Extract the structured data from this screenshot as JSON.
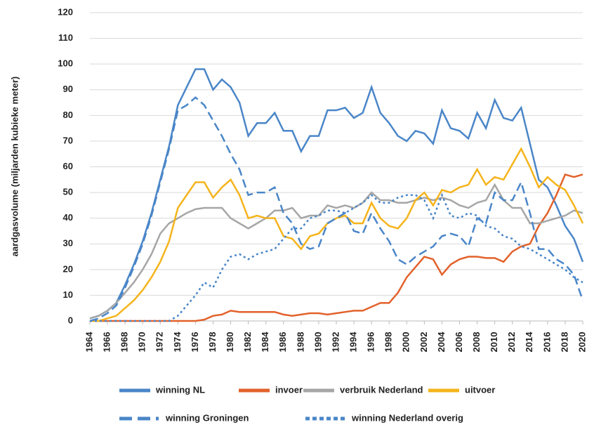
{
  "chart_data": {
    "type": "line",
    "y_label": "aardgasvolume (miljarden kubieke meter)",
    "x": [
      1964,
      1965,
      1966,
      1967,
      1968,
      1969,
      1970,
      1971,
      1972,
      1973,
      1974,
      1975,
      1976,
      1977,
      1978,
      1979,
      1980,
      1981,
      1982,
      1983,
      1984,
      1985,
      1986,
      1987,
      1988,
      1989,
      1990,
      1991,
      1992,
      1993,
      1994,
      1995,
      1996,
      1997,
      1998,
      1999,
      2000,
      2001,
      2002,
      2003,
      2004,
      2005,
      2006,
      2007,
      2008,
      2009,
      2010,
      2011,
      2012,
      2013,
      2014,
      2015,
      2016,
      2017,
      2018,
      2019,
      2020
    ],
    "xlim": [
      1964,
      2020
    ],
    "xticks": [
      1964,
      1966,
      1968,
      1970,
      1972,
      1974,
      1976,
      1978,
      1980,
      1982,
      1984,
      1986,
      1988,
      1990,
      1992,
      1994,
      1996,
      1998,
      2000,
      2002,
      2004,
      2006,
      2008,
      2010,
      2012,
      2014,
      2016,
      2018,
      2020
    ],
    "ylim": [
      0,
      120
    ],
    "yticks": [
      0,
      10,
      20,
      30,
      40,
      50,
      60,
      70,
      80,
      90,
      100,
      110,
      120
    ],
    "grid": true,
    "series": [
      {
        "name": "winning NL",
        "color": "#4a86c8",
        "linestyle": "solid",
        "values": [
          1,
          2,
          4,
          7,
          14,
          22,
          31,
          42,
          55,
          68,
          84,
          91,
          98,
          98,
          90,
          94,
          91,
          85,
          72,
          77,
          77,
          81,
          74,
          74,
          66,
          72,
          72,
          82,
          82,
          83,
          79,
          81,
          91,
          81,
          77,
          72,
          70,
          74,
          73,
          69,
          82,
          75,
          74,
          71,
          81,
          75,
          86,
          79,
          78,
          83,
          69,
          55,
          52,
          45,
          37,
          32,
          23
        ]
      },
      {
        "name": "invoer",
        "color": "#e2622b",
        "linestyle": "solid",
        "values": [
          0,
          0,
          0,
          0,
          0,
          0,
          0,
          0,
          0,
          0,
          0,
          0,
          0,
          0.5,
          2,
          2.5,
          4,
          3.5,
          3.5,
          3.5,
          3.5,
          3.5,
          2.5,
          2,
          2.5,
          3,
          3,
          2.5,
          3,
          3.5,
          4,
          4,
          5.5,
          7,
          7,
          11,
          17,
          21,
          25,
          24,
          18,
          22,
          24,
          25,
          25,
          24.5,
          24.5,
          23,
          27,
          29,
          30,
          37,
          42,
          49,
          57,
          56,
          57
        ]
      },
      {
        "name": "verbruik Nederland",
        "color": "#a6a6a6",
        "linestyle": "solid",
        "values": [
          1,
          2,
          4,
          7,
          11,
          15,
          20,
          26,
          34,
          38,
          40,
          42,
          43.5,
          44,
          44,
          44,
          40,
          38,
          36,
          38,
          40,
          43,
          43,
          44,
          40,
          41,
          41,
          45,
          44,
          45,
          44,
          46,
          50,
          47,
          47,
          46,
          46,
          47,
          48,
          47,
          48,
          47,
          45,
          44,
          46,
          47,
          53,
          47,
          44,
          44,
          38,
          38,
          39,
          40,
          41,
          43,
          42
        ]
      },
      {
        "name": "uitvoer",
        "color": "#f5b41c",
        "linestyle": "solid",
        "values": [
          0,
          0,
          1,
          2,
          5,
          8,
          12,
          17,
          23,
          31,
          44,
          49,
          54,
          54,
          48,
          52,
          55,
          49,
          40,
          41,
          40,
          40,
          33,
          32,
          28,
          33,
          34,
          38,
          40,
          41,
          38,
          38,
          46,
          40,
          37,
          36,
          40,
          47,
          50,
          45,
          51,
          50,
          52,
          53,
          59,
          53,
          56,
          55,
          61,
          67,
          60,
          52,
          56,
          53,
          51,
          45,
          38
        ]
      },
      {
        "name": "winning Groningen",
        "color": "#4a86c8",
        "linestyle": "dashed",
        "values": [
          0,
          1,
          3,
          6,
          13,
          21,
          30,
          41,
          54,
          67,
          82,
          84,
          87,
          84,
          78,
          72,
          65,
          59,
          49,
          50,
          50,
          52,
          42,
          38,
          30,
          28,
          29,
          38,
          40,
          42,
          35,
          34,
          42,
          36,
          31,
          24,
          22,
          25,
          27,
          29,
          33,
          34,
          33,
          29,
          40,
          38,
          50,
          47,
          47,
          54,
          42,
          28,
          28,
          24,
          22,
          18,
          8
        ]
      },
      {
        "name": "winning Nederland overig",
        "color": "#4a86c8",
        "linestyle": "dotted",
        "values": [
          0,
          0,
          0,
          0,
          0,
          0,
          0,
          0,
          0,
          0,
          2,
          6,
          10,
          15,
          13,
          20,
          25,
          26,
          24,
          26,
          27,
          28,
          32,
          36,
          36,
          40,
          41,
          43,
          43,
          42,
          44,
          46,
          49,
          46,
          46,
          48,
          49,
          49,
          47,
          40,
          49,
          41,
          40,
          42,
          41,
          37,
          36,
          33,
          32,
          29,
          28,
          26,
          24,
          22,
          20,
          17,
          15
        ]
      }
    ]
  }
}
